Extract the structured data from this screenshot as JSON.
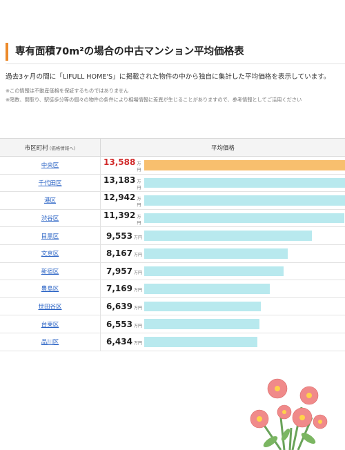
{
  "section": {
    "title": "専有面積70m²の場合の中古マンション平均価格表",
    "lead": "過去3ヶ月の間に「LIFULL HOME'S」に掲載された物件の中から独自に集計した平均価格を表示しています。",
    "note1": "※この情報は不動産価格を保証するものではありません",
    "note2": "※階数、間取り、駅徒歩分等の個々の物件の条件により相場情報に差異が生じることがありますので、参考情報としてご活用ください"
  },
  "table": {
    "header_area": "市区町村",
    "header_area_sub": "(価格情報へ)",
    "header_price": "平均価格",
    "unit": "万円",
    "rows": [
      {
        "area": "中央区",
        "price": "13,588"
      },
      {
        "area": "千代田区",
        "price": "13,183"
      },
      {
        "area": "港区",
        "price": "12,942"
      },
      {
        "area": "渋谷区",
        "price": "11,392"
      },
      {
        "area": "目黒区",
        "price": "9,553"
      },
      {
        "area": "文京区",
        "price": "8,167"
      },
      {
        "area": "新宿区",
        "price": "7,957"
      },
      {
        "area": "豊島区",
        "price": "7,169"
      },
      {
        "area": "世田谷区",
        "price": "6,639"
      },
      {
        "area": "台東区",
        "price": "6,553"
      },
      {
        "area": "品川区",
        "price": "6,434"
      }
    ]
  },
  "chart_data": {
    "type": "bar",
    "categories": [
      "中央区",
      "千代田区",
      "港区",
      "渋谷区",
      "目黒区",
      "文京区",
      "新宿区",
      "豊島区",
      "世田谷区",
      "台東区",
      "品川区"
    ],
    "values": [
      13588,
      13183,
      12942,
      11392,
      9553,
      8167,
      7957,
      7169,
      6639,
      6553,
      6434
    ],
    "ylabel": "平均価格",
    "unit": "万円",
    "xlim_visible": [
      0,
      11450
    ],
    "highlight_color": "#f8bf6e",
    "bar_color": "#b8e9ee"
  },
  "colors": {
    "accent": "#ec8a2b",
    "link": "#2a63c5",
    "top_price": "#d12a2a"
  },
  "decor": {
    "icon": "flower-bouquet-icon"
  }
}
